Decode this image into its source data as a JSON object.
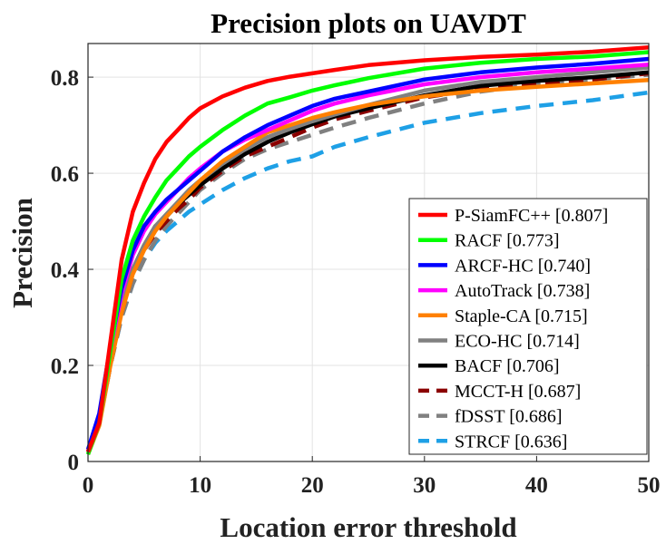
{
  "chart_data": {
    "type": "line",
    "title": "Precision plots on UAVDT",
    "xlabel": "Location error threshold",
    "ylabel": "Precision",
    "xlim": [
      0,
      50
    ],
    "ylim": [
      0,
      0.87
    ],
    "xticks": [
      0,
      10,
      20,
      30,
      40,
      50
    ],
    "xtick_labels": [
      "0",
      "10",
      "20",
      "30",
      "40",
      "50"
    ],
    "yticks": [
      0,
      0.2,
      0.4,
      0.6,
      0.8
    ],
    "ytick_labels": [
      "0",
      "0.2",
      "0.4",
      "0.6",
      "0.8"
    ],
    "grid": true,
    "legend_position": "lower-right",
    "x": [
      0,
      1,
      2,
      3,
      4,
      5,
      6,
      7,
      8,
      9,
      10,
      12,
      14,
      16,
      18,
      20,
      22,
      25,
      30,
      35,
      40,
      45,
      50
    ],
    "series": [
      {
        "name": "P-SiamFC++",
        "score": "[0.807]",
        "color": "#ff0000",
        "dash": false,
        "values": [
          0.02,
          0.08,
          0.25,
          0.42,
          0.52,
          0.58,
          0.63,
          0.665,
          0.69,
          0.715,
          0.735,
          0.76,
          0.778,
          0.792,
          0.801,
          0.808,
          0.815,
          0.825,
          0.835,
          0.842,
          0.847,
          0.853,
          0.862
        ]
      },
      {
        "name": "RACF",
        "score": "[0.773]",
        "color": "#00ff00",
        "dash": false,
        "values": [
          0.015,
          0.08,
          0.23,
          0.38,
          0.46,
          0.51,
          0.55,
          0.585,
          0.61,
          0.635,
          0.655,
          0.69,
          0.72,
          0.745,
          0.758,
          0.772,
          0.783,
          0.798,
          0.818,
          0.83,
          0.838,
          0.843,
          0.852
        ]
      },
      {
        "name": "ARCF-HC",
        "score": "[0.740]",
        "color": "#0000ff",
        "dash": false,
        "values": [
          0.025,
          0.1,
          0.24,
          0.36,
          0.44,
          0.49,
          0.52,
          0.545,
          0.565,
          0.585,
          0.605,
          0.645,
          0.675,
          0.7,
          0.72,
          0.74,
          0.755,
          0.77,
          0.795,
          0.81,
          0.82,
          0.828,
          0.838
        ]
      },
      {
        "name": "AutoTrack",
        "score": "[0.738]",
        "color": "#ff00ff",
        "dash": false,
        "values": [
          0.02,
          0.09,
          0.23,
          0.35,
          0.43,
          0.48,
          0.515,
          0.54,
          0.565,
          0.59,
          0.61,
          0.645,
          0.67,
          0.69,
          0.71,
          0.73,
          0.745,
          0.762,
          0.785,
          0.8,
          0.81,
          0.818,
          0.826
        ]
      },
      {
        "name": "Staple-CA",
        "score": "[0.715]",
        "color": "#ff8000",
        "dash": false,
        "values": [
          0.015,
          0.075,
          0.2,
          0.31,
          0.39,
          0.44,
          0.48,
          0.51,
          0.535,
          0.56,
          0.585,
          0.625,
          0.655,
          0.685,
          0.7,
          0.715,
          0.727,
          0.742,
          0.76,
          0.772,
          0.78,
          0.787,
          0.794
        ]
      },
      {
        "name": "ECO-HC",
        "score": "[0.714]",
        "color": "#808080",
        "dash": false,
        "values": [
          0.02,
          0.08,
          0.21,
          0.32,
          0.4,
          0.45,
          0.49,
          0.515,
          0.54,
          0.565,
          0.585,
          0.62,
          0.65,
          0.675,
          0.692,
          0.708,
          0.722,
          0.742,
          0.772,
          0.79,
          0.8,
          0.81,
          0.82
        ]
      },
      {
        "name": "BACF",
        "score": "[0.706]",
        "color": "#000000",
        "dash": false,
        "values": [
          0.02,
          0.08,
          0.21,
          0.32,
          0.4,
          0.45,
          0.49,
          0.51,
          0.535,
          0.555,
          0.575,
          0.61,
          0.64,
          0.665,
          0.685,
          0.702,
          0.718,
          0.735,
          0.762,
          0.782,
          0.792,
          0.8,
          0.81
        ]
      },
      {
        "name": "MCCT-H",
        "score": "[0.687]",
        "color": "#8b0000",
        "dash": true,
        "values": [
          0.02,
          0.08,
          0.2,
          0.31,
          0.39,
          0.44,
          0.475,
          0.5,
          0.525,
          0.545,
          0.57,
          0.605,
          0.635,
          0.655,
          0.675,
          0.695,
          0.712,
          0.73,
          0.758,
          0.775,
          0.785,
          0.795,
          0.808
        ]
      },
      {
        "name": "fDSST",
        "score": "[0.686]",
        "color": "#808080",
        "dash": true,
        "values": [
          0.02,
          0.08,
          0.2,
          0.3,
          0.37,
          0.42,
          0.46,
          0.49,
          0.515,
          0.54,
          0.565,
          0.6,
          0.63,
          0.65,
          0.665,
          0.68,
          0.695,
          0.715,
          0.745,
          0.77,
          0.785,
          0.795,
          0.805
        ]
      },
      {
        "name": "STRCF",
        "score": "[0.636]",
        "color": "#1ea0e6",
        "dash": true,
        "values": [
          0.02,
          0.08,
          0.2,
          0.3,
          0.37,
          0.42,
          0.455,
          0.48,
          0.5,
          0.52,
          0.535,
          0.565,
          0.59,
          0.61,
          0.625,
          0.635,
          0.655,
          0.675,
          0.705,
          0.725,
          0.74,
          0.752,
          0.768
        ]
      }
    ]
  }
}
